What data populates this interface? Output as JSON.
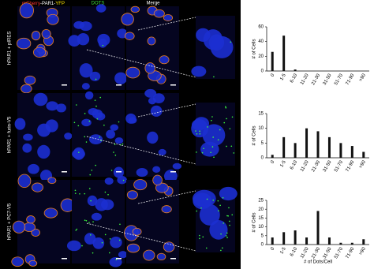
{
  "header": {
    "panel1": [
      "mCherry",
      "-PAR1-",
      "YFP"
    ],
    "panel2": "DOTS",
    "panel3": "Merge"
  },
  "rows": [
    {
      "label": "hPAR1 + pIRES"
    },
    {
      "label": "hPAR1 + furin-V5"
    },
    {
      "label": "hPAR1 + PC7-V5"
    }
  ],
  "chart_data": [
    {
      "type": "bar",
      "ylabel": "# of Cells",
      "color": "#111111",
      "categories": [
        "0",
        "1-5",
        "6-10",
        "11-20",
        "21-30",
        "31-50",
        "51-70",
        "71-90",
        ">90"
      ],
      "values": [
        26,
        48,
        2,
        0,
        0,
        0,
        0,
        0,
        0
      ],
      "ylim": [
        0,
        60
      ],
      "yticks": [
        0,
        20,
        40,
        60
      ]
    },
    {
      "type": "bar",
      "ylabel": "# of Cells",
      "color": "#111111",
      "categories": [
        "0",
        "1-5",
        "6-10",
        "11-20",
        "21-30",
        "31-50",
        "51-70",
        "71-90",
        ">90"
      ],
      "values": [
        1,
        7,
        5,
        10,
        9,
        7,
        5,
        4,
        2
      ],
      "ylim": [
        0,
        15
      ],
      "yticks": [
        0,
        5,
        10,
        15
      ]
    },
    {
      "type": "bar",
      "ylabel": "# of Cells",
      "xlabel": "# of Dots/Cell",
      "color": "#111111",
      "categories": [
        "0",
        "1-5",
        "6-10",
        "11-20",
        "21-30",
        "31-50",
        "51-70",
        "71-90",
        ">90"
      ],
      "values": [
        4,
        7,
        8,
        4,
        19,
        4,
        1,
        1,
        3
      ],
      "ylim": [
        0,
        25
      ],
      "yticks": [
        0,
        5,
        10,
        15,
        20,
        25
      ]
    }
  ]
}
